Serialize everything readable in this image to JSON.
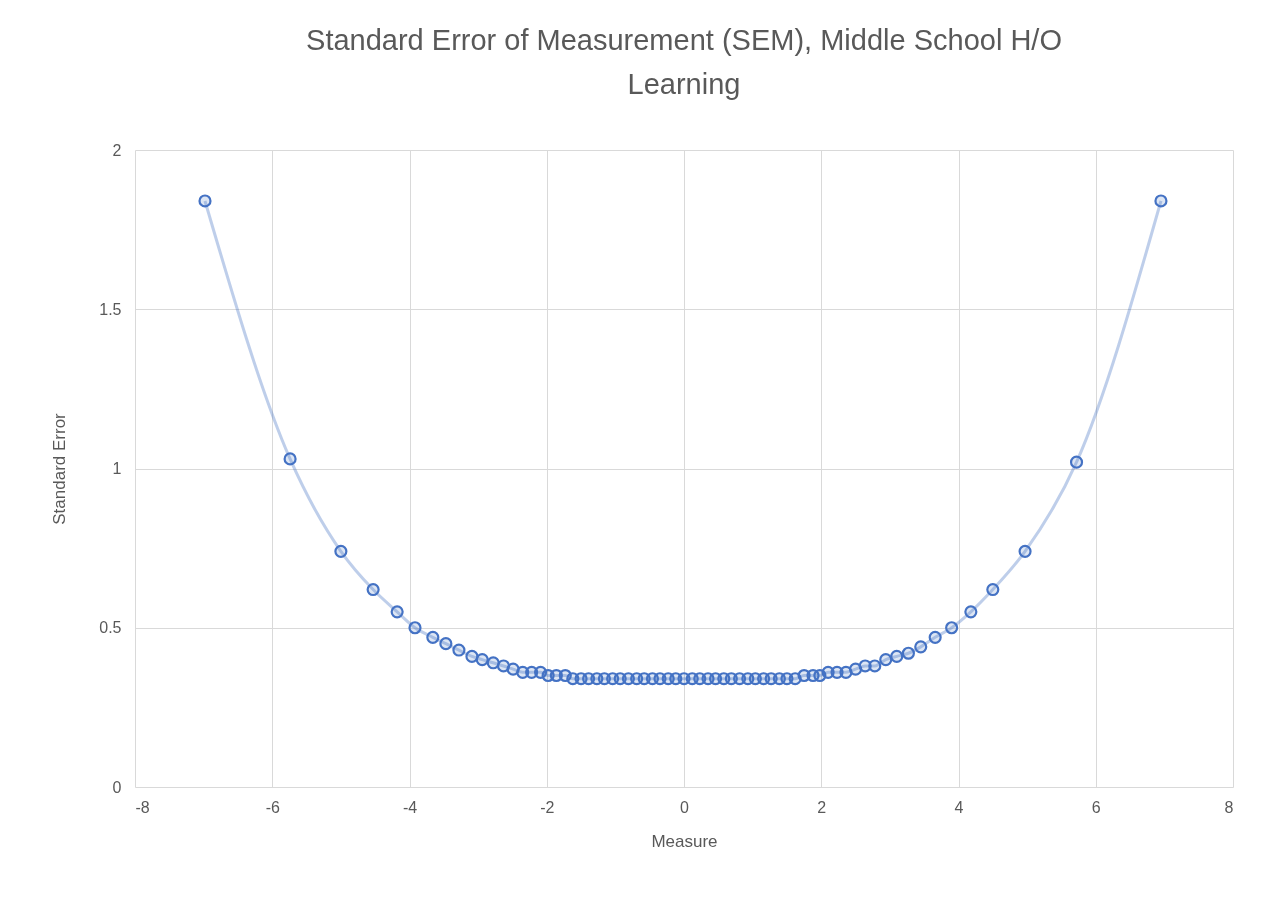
{
  "chart_data": {
    "type": "line",
    "title": "Standard Error of Measurement (SEM), Middle School H/O Learning",
    "xlabel": "Measure",
    "ylabel": "Standard Error",
    "x": [
      -6.98,
      -5.74,
      -5.0,
      -4.53,
      -4.18,
      -3.92,
      -3.66,
      -3.47,
      -3.28,
      -3.09,
      -2.94,
      -2.78,
      -2.63,
      -2.49,
      -2.35,
      -2.22,
      -2.09,
      -1.98,
      -1.86,
      -1.73,
      -1.62,
      -1.5,
      -1.39,
      -1.27,
      -1.16,
      -1.04,
      -0.93,
      -0.81,
      -0.69,
      -0.58,
      -0.46,
      -0.35,
      -0.23,
      -0.12,
      0,
      0.12,
      0.23,
      0.35,
      0.46,
      0.58,
      0.69,
      0.81,
      0.93,
      1.04,
      1.16,
      1.27,
      1.39,
      1.5,
      1.62,
      1.75,
      1.88,
      1.98,
      2.1,
      2.23,
      2.36,
      2.5,
      2.64,
      2.78,
      2.94,
      3.1,
      3.27,
      3.45,
      3.66,
      3.9,
      4.18,
      4.5,
      4.97,
      5.72,
      6.95
    ],
    "series": [
      {
        "color": "#4472c4",
        "values": [
          1.84,
          1.03,
          0.74,
          0.62,
          0.55,
          0.5,
          0.47,
          0.45,
          0.43,
          0.41,
          0.4,
          0.39,
          0.38,
          0.37,
          0.36,
          0.36,
          0.36,
          0.35,
          0.35,
          0.35,
          0.34,
          0.34,
          0.34,
          0.34,
          0.34,
          0.34,
          0.34,
          0.34,
          0.34,
          0.34,
          0.34,
          0.34,
          0.34,
          0.34,
          0.34,
          0.34,
          0.34,
          0.34,
          0.34,
          0.34,
          0.34,
          0.34,
          0.34,
          0.34,
          0.34,
          0.34,
          0.34,
          0.34,
          0.34,
          0.35,
          0.35,
          0.35,
          0.36,
          0.36,
          0.36,
          0.37,
          0.38,
          0.38,
          0.4,
          0.41,
          0.42,
          0.44,
          0.47,
          0.5,
          0.55,
          0.62,
          0.74,
          1.02,
          1.84
        ]
      }
    ],
    "xlim": [
      -8,
      8
    ],
    "xticks": [
      -8,
      -6,
      -4,
      -2,
      0,
      2,
      4,
      6,
      8
    ],
    "ylim": [
      0,
      2
    ],
    "yticks": [
      0,
      0.5,
      1,
      1.5,
      2
    ],
    "grid": true,
    "marker": "circle",
    "line_style": "solid"
  }
}
